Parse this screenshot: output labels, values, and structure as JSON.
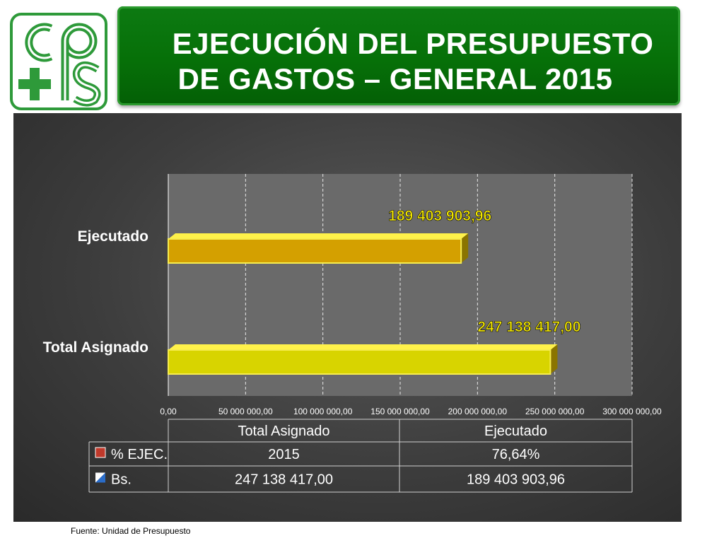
{
  "title": {
    "line1": "EJECUCIÓN DEL PRESUPUESTO",
    "line2": "DE GASTOS – GENERAL 2015"
  },
  "logo": {
    "icon": "cps-cross-logo",
    "text": "cps"
  },
  "source_note": "Fuente: Unidad de Presupuesto",
  "colors": {
    "banner": "#067008",
    "ejecutado_bar": "#d4a000",
    "asignado_bar": "#d8d400",
    "label": "#f2e600",
    "panel": "#3d3d3d"
  },
  "chart_data": {
    "type": "bar",
    "orientation": "horizontal",
    "categories": [
      "Ejecutado",
      "Total Asignado"
    ],
    "values": [
      189403903.96,
      247138417.0
    ],
    "data_labels": [
      "189 403 903,96",
      "247 138 417,00"
    ],
    "x_ticks": [
      "0,00",
      "50 000 000,00",
      "100 000 000,00",
      "150 000 000,00",
      "200 000 000,00",
      "250 000 000,00",
      "300 000 000,00"
    ],
    "xlim": [
      0,
      300000000
    ],
    "grid": true,
    "table": {
      "columns": [
        "Total Asignado",
        "Ejecutado"
      ],
      "rows": [
        {
          "label": "% EJEC.",
          "values": [
            "2015",
            "76,64%"
          ]
        },
        {
          "label": "Bs.",
          "values": [
            "247 138 417,00",
            "189 403 903,96"
          ]
        }
      ]
    }
  }
}
